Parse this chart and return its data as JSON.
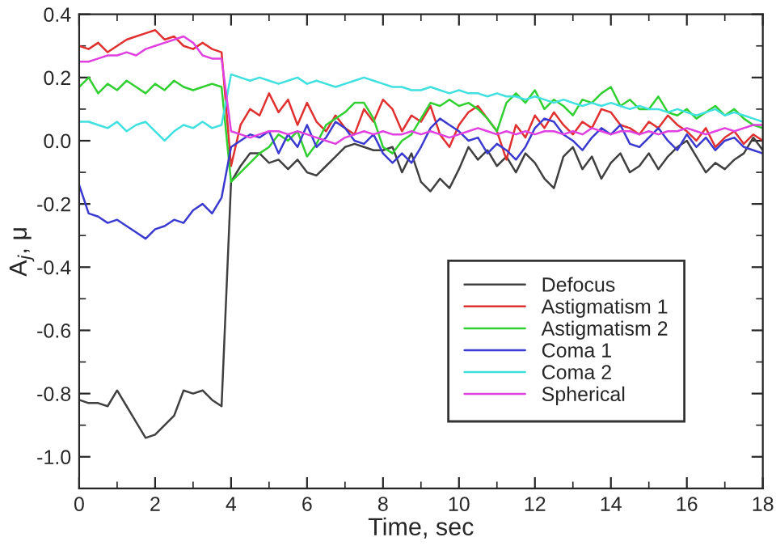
{
  "chart_data": {
    "type": "line",
    "xlabel": "Time, sec",
    "ylabel": "A$_{j}$, μ",
    "x": [
      0,
      0.25,
      0.5,
      0.75,
      1,
      1.25,
      1.5,
      1.75,
      2,
      2.25,
      2.5,
      2.75,
      3,
      3.25,
      3.5,
      3.75,
      4,
      4.25,
      4.5,
      4.75,
      5,
      5.25,
      5.5,
      5.75,
      6,
      6.25,
      6.5,
      6.75,
      7,
      7.25,
      7.5,
      7.75,
      8,
      8.25,
      8.5,
      8.75,
      9,
      9.25,
      9.5,
      9.75,
      10,
      10.25,
      10.5,
      10.75,
      11,
      11.25,
      11.5,
      11.75,
      12,
      12.25,
      12.5,
      12.75,
      13,
      13.25,
      13.5,
      13.75,
      14,
      14.25,
      14.5,
      14.75,
      15,
      15.25,
      15.5,
      15.75,
      16,
      16.25,
      16.5,
      16.75,
      17,
      17.25,
      17.5,
      17.75,
      18
    ],
    "series": [
      {
        "name": "Defocus",
        "color": "#404040",
        "values": [
          -0.82,
          -0.83,
          -0.83,
          -0.84,
          -0.79,
          -0.84,
          -0.89,
          -0.94,
          -0.93,
          -0.9,
          -0.87,
          -0.79,
          -0.8,
          -0.79,
          -0.82,
          -0.84,
          -0.13,
          -0.08,
          -0.04,
          -0.04,
          -0.07,
          -0.06,
          -0.09,
          -0.06,
          -0.1,
          -0.11,
          -0.08,
          -0.05,
          -0.02,
          -0.01,
          -0.02,
          -0.03,
          -0.03,
          -0.02,
          -0.1,
          -0.04,
          -0.13,
          -0.16,
          -0.12,
          -0.15,
          -0.09,
          -0.02,
          -0.06,
          -0.03,
          -0.08,
          -0.05,
          -0.1,
          -0.04,
          -0.07,
          -0.12,
          -0.15,
          -0.05,
          -0.02,
          -0.09,
          -0.05,
          -0.12,
          -0.07,
          -0.04,
          -0.1,
          -0.08,
          -0.04,
          -0.09,
          -0.05,
          -0.02,
          0.0,
          -0.05,
          -0.1,
          -0.07,
          -0.09,
          -0.06,
          -0.04,
          0.01,
          -0.03
        ]
      },
      {
        "name": "Astigmatism 1",
        "color": "#e03030",
        "values": [
          0.3,
          0.29,
          0.31,
          0.28,
          0.3,
          0.32,
          0.33,
          0.34,
          0.35,
          0.32,
          0.33,
          0.3,
          0.29,
          0.31,
          0.29,
          0.28,
          -0.08,
          0.05,
          0.1,
          0.08,
          0.15,
          0.09,
          0.13,
          0.05,
          0.12,
          0.06,
          0.03,
          0.08,
          0.04,
          0.02,
          0.1,
          0.06,
          0.13,
          0.1,
          0.03,
          0.08,
          0.06,
          0.11,
          0.02,
          -0.02,
          0.05,
          0.09,
          0.11,
          0.07,
          0.03,
          -0.06,
          0.05,
          0.01,
          0.08,
          0.04,
          0.09,
          0.05,
          0.02,
          0.06,
          0.04,
          0.1,
          0.09,
          0.05,
          0.04,
          0.02,
          0.06,
          0.04,
          0.08,
          0.05,
          0.03,
          0.0,
          0.04,
          -0.02,
          0.01,
          0.03,
          -0.01,
          0.02,
          0.0
        ]
      },
      {
        "name": "Astigmatism 2",
        "color": "#30d030",
        "values": [
          0.17,
          0.2,
          0.15,
          0.18,
          0.16,
          0.19,
          0.17,
          0.15,
          0.18,
          0.16,
          0.19,
          0.17,
          0.16,
          0.17,
          0.18,
          0.17,
          -0.13,
          -0.1,
          -0.07,
          -0.04,
          -0.02,
          0.02,
          0.0,
          0.03,
          -0.05,
          -0.01,
          0.05,
          0.07,
          0.09,
          0.12,
          0.12,
          0.07,
          -0.02,
          -0.04,
          0.0,
          0.02,
          0.07,
          0.12,
          0.11,
          0.13,
          0.11,
          0.12,
          0.1,
          0.07,
          0.03,
          0.12,
          0.15,
          0.12,
          0.16,
          0.1,
          0.13,
          0.11,
          0.08,
          0.13,
          0.12,
          0.15,
          0.17,
          0.11,
          0.13,
          0.1,
          0.1,
          0.14,
          0.09,
          0.08,
          0.1,
          0.07,
          0.09,
          0.11,
          0.08,
          0.1,
          0.07,
          0.05,
          0.04
        ]
      },
      {
        "name": "Coma 1",
        "color": "#3a3ad0",
        "values": [
          -0.14,
          -0.23,
          -0.24,
          -0.26,
          -0.25,
          -0.27,
          -0.29,
          -0.31,
          -0.28,
          -0.27,
          -0.25,
          -0.26,
          -0.22,
          -0.2,
          -0.23,
          -0.18,
          -0.02,
          0.0,
          0.02,
          0.01,
          0.03,
          -0.04,
          0.02,
          -0.02,
          0.05,
          -0.02,
          0.01,
          0.06,
          0.04,
          0.0,
          -0.01,
          0.02,
          -0.04,
          -0.07,
          -0.04,
          -0.07,
          -0.02,
          0.04,
          0.07,
          0.05,
          0.03,
          0.0,
          0.01,
          -0.04,
          -0.01,
          -0.03,
          -0.06,
          -0.02,
          0.04,
          0.07,
          0.06,
          0.02,
          0.0,
          -0.03,
          0.01,
          0.04,
          0.02,
          0.05,
          -0.01,
          -0.02,
          0.01,
          0.04,
          0.0,
          -0.03,
          0.02,
          -0.02,
          0.01,
          -0.03,
          0.0,
          0.01,
          -0.02,
          -0.03,
          -0.04
        ]
      },
      {
        "name": "Coma 2",
        "color": "#40e0e0",
        "values": [
          0.06,
          0.06,
          0.05,
          0.04,
          0.06,
          0.03,
          0.05,
          0.06,
          0.03,
          0.0,
          0.03,
          0.05,
          0.04,
          0.06,
          0.04,
          0.05,
          0.21,
          0.2,
          0.19,
          0.2,
          0.19,
          0.18,
          0.19,
          0.2,
          0.18,
          0.19,
          0.18,
          0.17,
          0.18,
          0.19,
          0.2,
          0.19,
          0.18,
          0.17,
          0.17,
          0.16,
          0.16,
          0.17,
          0.16,
          0.15,
          0.16,
          0.15,
          0.15,
          0.14,
          0.15,
          0.14,
          0.14,
          0.13,
          0.14,
          0.13,
          0.12,
          0.13,
          0.12,
          0.11,
          0.12,
          0.11,
          0.12,
          0.11,
          0.1,
          0.11,
          0.1,
          0.1,
          0.09,
          0.1,
          0.09,
          0.08,
          0.09,
          0.1,
          0.08,
          0.09,
          0.08,
          0.07,
          0.06
        ]
      },
      {
        "name": "Spherical",
        "color": "#e040e0",
        "values": [
          0.25,
          0.25,
          0.26,
          0.27,
          0.27,
          0.28,
          0.27,
          0.29,
          0.3,
          0.31,
          0.32,
          0.33,
          0.31,
          0.27,
          0.26,
          0.26,
          0.03,
          0.02,
          0.01,
          0.02,
          0.03,
          0.03,
          0.02,
          0.03,
          0.02,
          0.01,
          0.0,
          -0.01,
          0.01,
          0.02,
          0.03,
          0.02,
          0.03,
          0.02,
          0.02,
          0.03,
          0.02,
          0.03,
          0.02,
          0.01,
          0.02,
          0.03,
          0.04,
          0.03,
          0.02,
          0.03,
          0.02,
          0.03,
          0.02,
          0.03,
          0.03,
          0.02,
          0.03,
          0.02,
          0.04,
          0.03,
          0.02,
          0.03,
          0.03,
          0.02,
          0.03,
          0.02,
          0.03,
          0.03,
          0.04,
          0.03,
          0.02,
          0.03,
          0.04,
          0.03,
          0.04,
          0.05,
          0.05
        ]
      }
    ],
    "xlim": [
      0,
      18
    ],
    "xticks": [
      0,
      2,
      4,
      6,
      8,
      10,
      12,
      14,
      16,
      18
    ],
    "ylim": [
      -1.1,
      0.4
    ],
    "yticks": [
      {
        "value": -1.0,
        "label": "-1.0"
      },
      {
        "value": -0.8,
        "label": "-0.8"
      },
      {
        "value": -0.6,
        "label": "-0.6"
      },
      {
        "value": -0.4,
        "label": "-0.4"
      },
      {
        "value": -0.2,
        "label": "-0.2"
      },
      {
        "value": 0.0,
        "label": "0.0"
      },
      {
        "value": 0.2,
        "label": "0.2"
      },
      {
        "value": 0.4,
        "label": "0.4"
      }
    ],
    "grid": false,
    "legend": "lower right",
    "marker": "none",
    "line_style": "solid"
  }
}
